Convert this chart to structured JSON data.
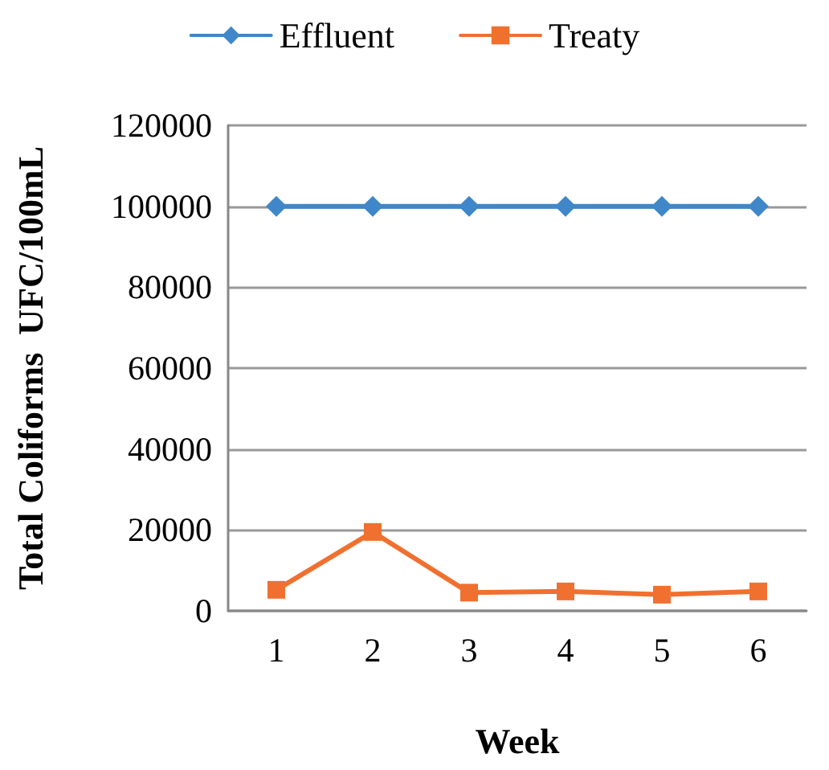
{
  "chart_data": {
    "type": "line",
    "xlabel": "Week",
    "ylabel": "Total Coliforms  UFC/100mL",
    "categories": [
      "1",
      "2",
      "3",
      "4",
      "5",
      "6"
    ],
    "series": [
      {
        "name": "Effluent",
        "color": "#3f87c8",
        "marker": "diamond",
        "values": [
          100000,
          100000,
          100000,
          100000,
          100000,
          100000
        ]
      },
      {
        "name": "Treaty",
        "color": "#f07030",
        "marker": "square",
        "values": [
          5200,
          19500,
          4500,
          4800,
          4000,
          4800
        ]
      }
    ],
    "ylim": [
      0,
      120000
    ],
    "yticks": [
      0,
      20000,
      40000,
      60000,
      80000,
      100000,
      120000
    ],
    "grid": "y",
    "legend": "top",
    "line_style": "solid"
  }
}
